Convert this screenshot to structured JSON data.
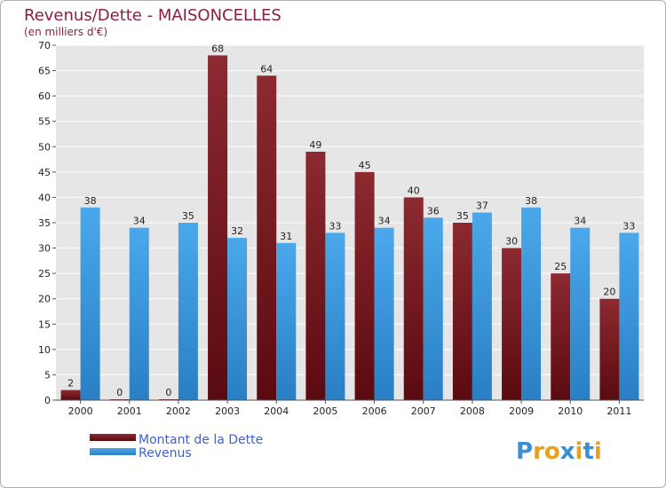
{
  "chart_data": {
    "type": "bar",
    "title": "Revenus/Dette - MAISONCELLES",
    "subtitle": "(en milliers d'€)",
    "categories": [
      "2000",
      "2001",
      "2002",
      "2003",
      "2004",
      "2005",
      "2006",
      "2007",
      "2008",
      "2009",
      "2010",
      "2011"
    ],
    "series": [
      {
        "name": "Montant de la Dette",
        "color": "#7a1c22",
        "values": [
          2,
          0,
          0,
          68,
          64,
          49,
          45,
          40,
          35,
          30,
          25,
          20
        ]
      },
      {
        "name": "Revenus",
        "color": "#3f9ee0",
        "values": [
          38,
          34,
          35,
          32,
          31,
          33,
          34,
          36,
          37,
          38,
          34,
          33
        ]
      }
    ],
    "ylim": [
      0,
      70
    ],
    "yticks": [
      0,
      5,
      10,
      15,
      20,
      25,
      30,
      35,
      40,
      45,
      50,
      55,
      60,
      65,
      70
    ],
    "grid": true,
    "legend_position": "bottom-left"
  },
  "logo": {
    "letters": [
      "P",
      "r",
      "o",
      "x",
      "i",
      "t",
      "i"
    ],
    "colors": [
      "#3a8fd8",
      "#e8a020",
      "#e8a020",
      "#3a8fd8",
      "#e8a020",
      "#3a8fd8",
      "#e8a020"
    ]
  }
}
